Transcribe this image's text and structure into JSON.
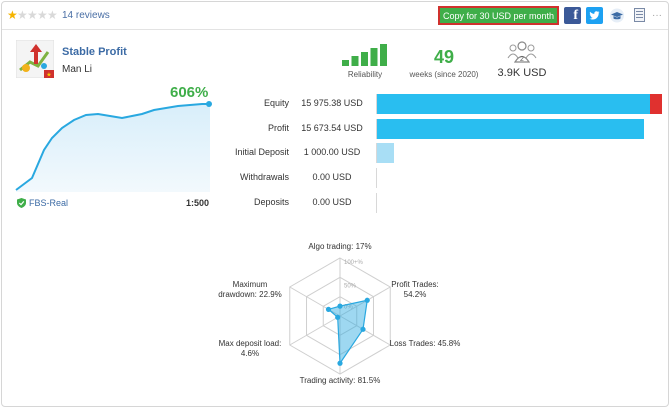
{
  "rating": {
    "stars_filled": 1,
    "stars_total": 5,
    "reviews_label": "14 reviews"
  },
  "toolbar": {
    "copy_label": "Copy for 30 USD per month",
    "facebook_glyph": "f",
    "icons": [
      "facebook-icon",
      "twitter-icon",
      "graduation-cap-icon",
      "document-icon",
      "more-icon"
    ],
    "more_glyph": "···"
  },
  "signal": {
    "name": "Stable Profit",
    "author": "Man Li"
  },
  "metrics": {
    "reliability_label": "Reliability",
    "reliability_bars_filled": 5,
    "weeks_value": "49",
    "weeks_label": "weeks (since 2020)",
    "subscribers_count": "2",
    "subscribers_value": "3.9K USD"
  },
  "growth": {
    "value": "606%",
    "broker": "FBS-Real",
    "leverage": "1:500",
    "line_color": "#29a8e0"
  },
  "stats": [
    {
      "label": "Equity",
      "value": "15 975.38 USD",
      "fraction": 0.955,
      "negative_fraction": 0.04,
      "color": "#29bef0"
    },
    {
      "label": "Profit",
      "value": "15 673.54 USD",
      "fraction": 0.935,
      "negative_fraction": 0,
      "color": "#29bef0"
    },
    {
      "label": "Initial Deposit",
      "value": "1 000.00 USD",
      "fraction": 0.06,
      "negative_fraction": 0,
      "color": "#a8def5"
    },
    {
      "label": "Withdrawals",
      "value": "0.00 USD",
      "fraction": 0,
      "negative_fraction": 0,
      "color": "#29bef0"
    },
    {
      "label": "Deposits",
      "value": "0.00 USD",
      "fraction": 0,
      "negative_fraction": 0,
      "color": "#29bef0"
    }
  ],
  "radar": {
    "axes": [
      {
        "label": "Algo trading: 17%",
        "value": 17
      },
      {
        "label": "Profit Trades:\n54.2%",
        "value": 54.2
      },
      {
        "label": "Loss Trades: 45.8%",
        "value": 45.8
      },
      {
        "label": "Trading activity: 81.5%",
        "value": 81.5
      },
      {
        "label": "Max deposit load:\n4.6%",
        "value": 4.6
      },
      {
        "label": "Maximum\ndrawdown: 22.9%",
        "value": 22.9
      }
    ],
    "ring_labels": [
      "100+%",
      "50%",
      "0%"
    ],
    "color": "#29a8e0"
  }
}
